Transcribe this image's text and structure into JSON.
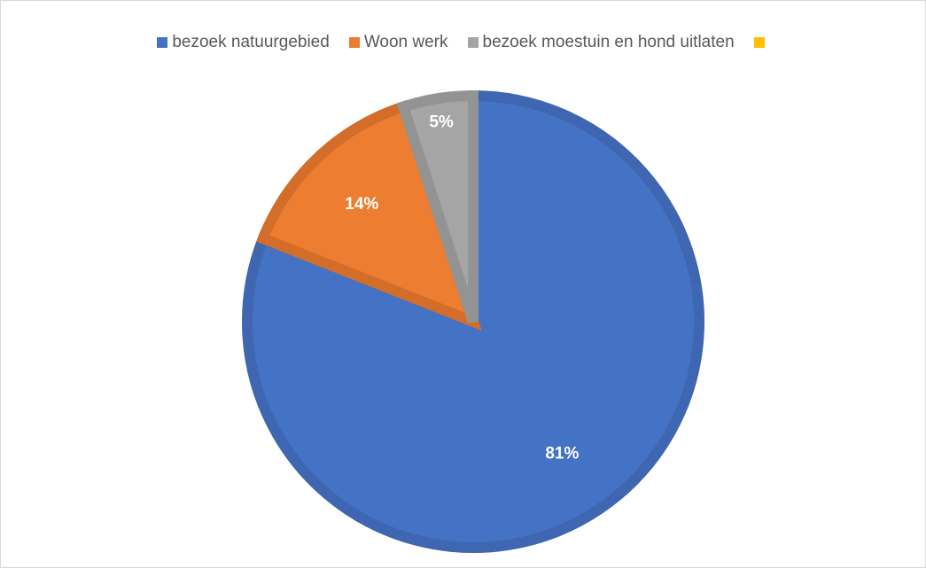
{
  "chart_data": {
    "type": "pie",
    "title": "",
    "categories": [
      "bezoek natuurgebied",
      "Woon werk",
      "bezoek moestuin en hond uitlaten",
      ""
    ],
    "values": [
      81,
      14,
      5,
      0
    ],
    "data_labels": [
      "81%",
      "14%",
      "5%",
      ""
    ],
    "colors": [
      "#4472C4",
      "#ED7D31",
      "#A5A5A5",
      "#FFC000"
    ],
    "border_colors": [
      "#3E66B1",
      "#D36E2A",
      "#939393",
      "#E5AD00"
    ],
    "start_angle": "12 o'clock",
    "direction": "clockwise",
    "legend_position": "top"
  }
}
